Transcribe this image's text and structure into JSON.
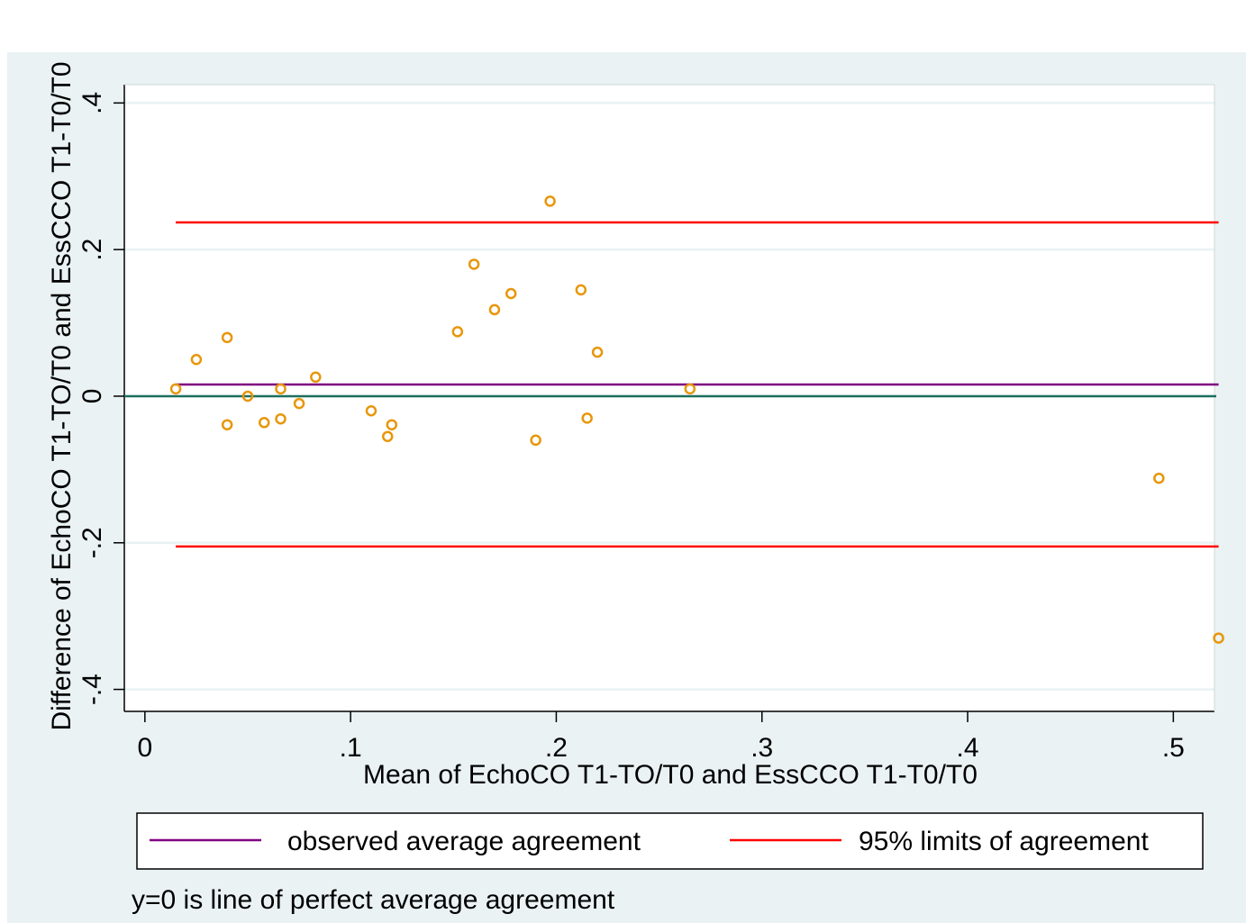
{
  "chart_data": {
    "type": "scatter",
    "xlabel": "Mean of EchoCO T1-TO/T0 and EssCCO T1-T0/T0",
    "ylabel": "Difference of EchoCO T1-TO/T0 and EssCCO T1-T0/T0",
    "xlim": [
      -0.01,
      0.52
    ],
    "ylim": [
      -0.43,
      0.425
    ],
    "x_ticks": [
      0,
      0.1,
      0.2,
      0.3,
      0.4,
      0.5
    ],
    "x_tick_labels": [
      "0",
      ".1",
      ".2",
      ".3",
      ".4",
      ".5"
    ],
    "y_ticks": [
      -0.4,
      -0.2,
      0,
      0.2,
      0.4
    ],
    "y_tick_labels": [
      "-.4",
      "-.2",
      "0",
      ".2",
      ".4"
    ],
    "grid": true,
    "points": [
      {
        "x": 0.015,
        "y": 0.01
      },
      {
        "x": 0.025,
        "y": 0.05
      },
      {
        "x": 0.04,
        "y": 0.08
      },
      {
        "x": 0.04,
        "y": -0.039
      },
      {
        "x": 0.05,
        "y": 0.0
      },
      {
        "x": 0.058,
        "y": -0.036
      },
      {
        "x": 0.066,
        "y": 0.01
      },
      {
        "x": 0.066,
        "y": -0.031
      },
      {
        "x": 0.075,
        "y": -0.01
      },
      {
        "x": 0.083,
        "y": 0.026
      },
      {
        "x": 0.11,
        "y": -0.02
      },
      {
        "x": 0.118,
        "y": -0.055
      },
      {
        "x": 0.12,
        "y": -0.039
      },
      {
        "x": 0.152,
        "y": 0.088
      },
      {
        "x": 0.16,
        "y": 0.18
      },
      {
        "x": 0.17,
        "y": 0.118
      },
      {
        "x": 0.178,
        "y": 0.14
      },
      {
        "x": 0.19,
        "y": -0.06
      },
      {
        "x": 0.197,
        "y": 0.266
      },
      {
        "x": 0.212,
        "y": 0.145
      },
      {
        "x": 0.215,
        "y": -0.03
      },
      {
        "x": 0.22,
        "y": 0.06
      },
      {
        "x": 0.265,
        "y": 0.01
      },
      {
        "x": 0.493,
        "y": -0.112
      },
      {
        "x": 0.522,
        "y": -0.33
      }
    ],
    "reference_lines": [
      {
        "kind": "observed average agreement",
        "y": 0.016,
        "x_start": 0.015,
        "x_end": 0.522,
        "color": "#800080"
      },
      {
        "kind": "upper limit",
        "y": 0.237,
        "x_start": 0.015,
        "x_end": 0.522,
        "color": "#ff0000"
      },
      {
        "kind": "lower limit",
        "y": -0.205,
        "x_start": 0.015,
        "x_end": 0.522,
        "color": "#ff0000"
      },
      {
        "kind": "zero line",
        "y": 0.0,
        "x_start": -0.01,
        "x_end": 0.52,
        "color": "#1c6f5e"
      }
    ],
    "point_color": "#e8960a",
    "legend": {
      "placement": "bottom",
      "items": [
        {
          "label": "observed average agreement",
          "color": "#800080"
        },
        {
          "label": "95% limits of agreement",
          "color": "#ff0000"
        }
      ]
    },
    "note": "y=0 is line of perfect average agreement"
  }
}
